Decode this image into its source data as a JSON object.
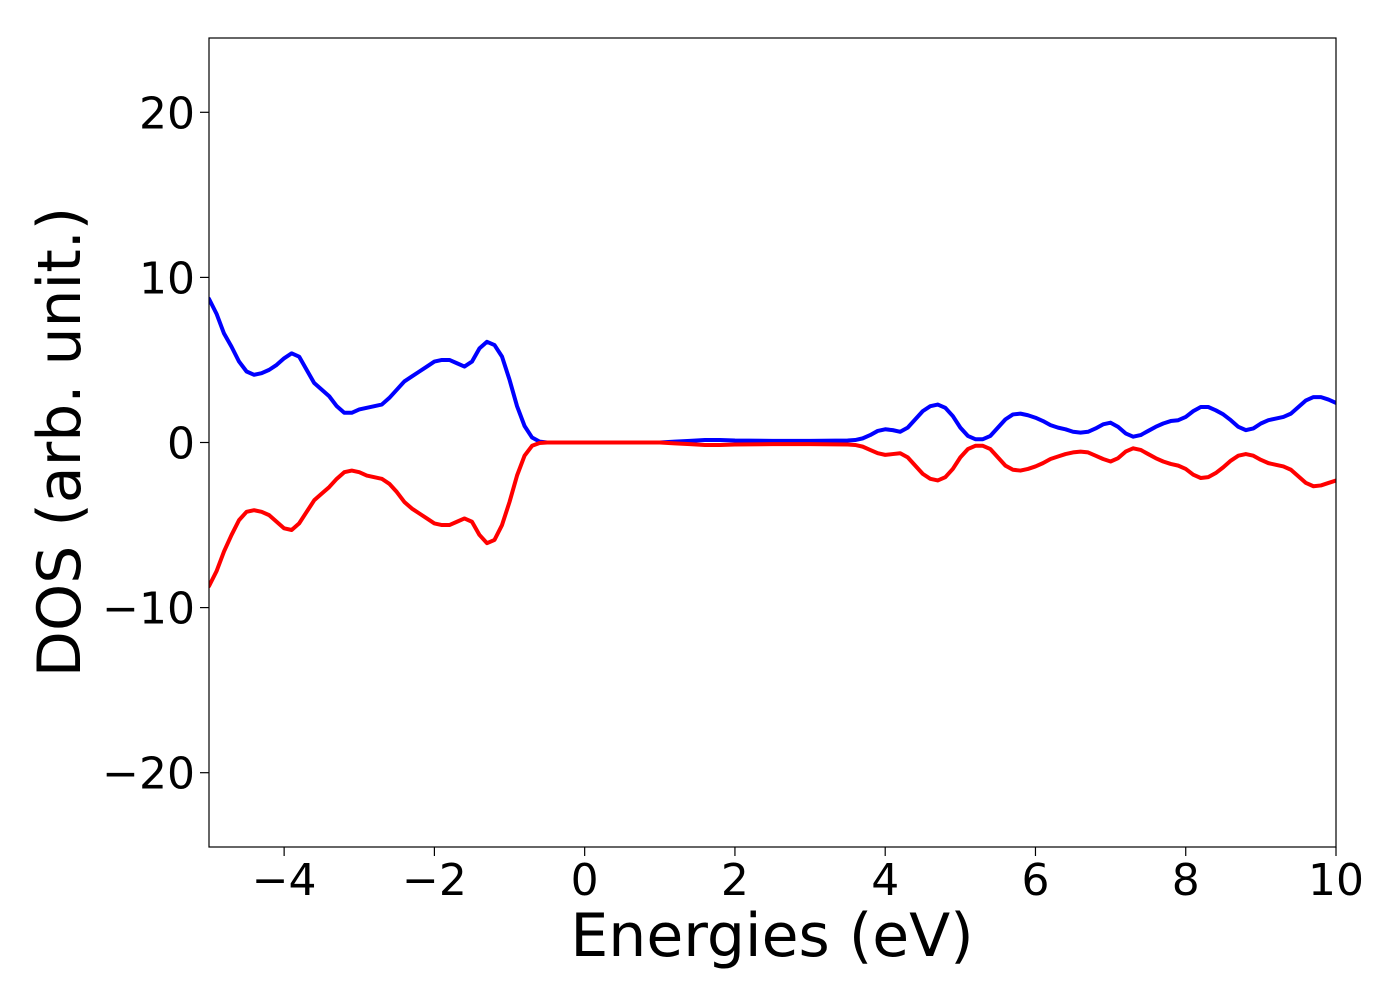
{
  "chart_data": {
    "type": "line",
    "title": "",
    "xlabel": "Energies (eV)",
    "ylabel": "DOS (arb. unit.)",
    "xlim": [
      -5,
      10
    ],
    "ylim": [
      -24.5,
      24.5
    ],
    "x_ticks": [
      -4,
      -2,
      0,
      2,
      4,
      6,
      8,
      10
    ],
    "y_ticks": [
      -20,
      -10,
      0,
      10,
      20
    ],
    "x_tick_labels": [
      "−4",
      "−2",
      "0",
      "2",
      "4",
      "6",
      "8",
      "10"
    ],
    "y_tick_labels": [
      "−20",
      "−10",
      "0",
      "10",
      "20"
    ],
    "grid": false,
    "legend": "none",
    "series": [
      {
        "color": "#0000ff",
        "x": [
          -5.0,
          -4.9,
          -4.8,
          -4.7,
          -4.6,
          -4.5,
          -4.4,
          -4.3,
          -4.2,
          -4.1,
          -4.0,
          -3.9,
          -3.8,
          -3.7,
          -3.6,
          -3.5,
          -3.4,
          -3.3,
          -3.2,
          -3.1,
          -3.0,
          -2.9,
          -2.8,
          -2.7,
          -2.6,
          -2.5,
          -2.4,
          -2.3,
          -2.2,
          -2.1,
          -2.0,
          -1.9,
          -1.8,
          -1.7,
          -1.6,
          -1.5,
          -1.4,
          -1.3,
          -1.2,
          -1.1,
          -1.0,
          -0.9,
          -0.8,
          -0.7,
          -0.6,
          -0.5,
          -0.4,
          0.0,
          0.5,
          1.0,
          1.2,
          1.4,
          1.6,
          1.8,
          2.0,
          2.5,
          3.0,
          3.5,
          3.6,
          3.7,
          3.8,
          3.9,
          4.0,
          4.1,
          4.2,
          4.3,
          4.4,
          4.5,
          4.6,
          4.7,
          4.8,
          4.9,
          5.0,
          5.1,
          5.2,
          5.3,
          5.4,
          5.5,
          5.6,
          5.7,
          5.8,
          5.9,
          6.0,
          6.1,
          6.2,
          6.3,
          6.4,
          6.5,
          6.6,
          6.7,
          6.8,
          6.9,
          7.0,
          7.1,
          7.2,
          7.3,
          7.4,
          7.5,
          7.6,
          7.7,
          7.8,
          7.9,
          8.0,
          8.1,
          8.2,
          8.3,
          8.4,
          8.5,
          8.6,
          8.7,
          8.8,
          8.9,
          9.0,
          9.1,
          9.2,
          9.3,
          9.4,
          9.5,
          9.6,
          9.7,
          9.8,
          9.9,
          10.0
        ],
        "y": [
          8.7,
          7.8,
          6.6,
          5.8,
          4.9,
          4.3,
          4.1,
          4.2,
          4.4,
          4.7,
          5.1,
          5.4,
          5.2,
          4.4,
          3.6,
          3.2,
          2.8,
          2.2,
          1.8,
          1.8,
          2.0,
          2.1,
          2.2,
          2.3,
          2.7,
          3.2,
          3.7,
          4.0,
          4.3,
          4.6,
          4.9,
          5.0,
          5.0,
          4.8,
          4.6,
          4.9,
          5.7,
          6.1,
          5.9,
          5.2,
          3.8,
          2.2,
          1.0,
          0.3,
          0.05,
          0.0,
          0.0,
          0.0,
          0.0,
          0.0,
          0.05,
          0.1,
          0.15,
          0.15,
          0.12,
          0.1,
          0.1,
          0.12,
          0.15,
          0.25,
          0.45,
          0.7,
          0.8,
          0.75,
          0.65,
          0.9,
          1.4,
          1.9,
          2.2,
          2.3,
          2.1,
          1.6,
          0.9,
          0.4,
          0.2,
          0.2,
          0.4,
          0.9,
          1.4,
          1.7,
          1.75,
          1.65,
          1.5,
          1.3,
          1.05,
          0.9,
          0.8,
          0.65,
          0.6,
          0.65,
          0.85,
          1.1,
          1.2,
          0.95,
          0.55,
          0.35,
          0.45,
          0.7,
          0.95,
          1.15,
          1.3,
          1.35,
          1.55,
          1.9,
          2.15,
          2.15,
          1.95,
          1.7,
          1.35,
          0.95,
          0.75,
          0.85,
          1.15,
          1.35,
          1.45,
          1.55,
          1.75,
          2.15,
          2.55,
          2.75,
          2.75,
          2.6,
          2.4
        ]
      },
      {
        "color": "#ff0000",
        "x": [
          -5.0,
          -4.9,
          -4.8,
          -4.7,
          -4.6,
          -4.5,
          -4.4,
          -4.3,
          -4.2,
          -4.1,
          -4.0,
          -3.9,
          -3.8,
          -3.7,
          -3.6,
          -3.5,
          -3.4,
          -3.3,
          -3.2,
          -3.1,
          -3.0,
          -2.9,
          -2.8,
          -2.7,
          -2.6,
          -2.5,
          -2.4,
          -2.3,
          -2.2,
          -2.1,
          -2.0,
          -1.9,
          -1.8,
          -1.7,
          -1.6,
          -1.5,
          -1.4,
          -1.3,
          -1.2,
          -1.1,
          -1.0,
          -0.9,
          -0.8,
          -0.7,
          -0.6,
          -0.5,
          -0.4,
          0.0,
          0.5,
          1.0,
          1.2,
          1.4,
          1.6,
          1.8,
          2.0,
          2.5,
          3.0,
          3.5,
          3.6,
          3.7,
          3.8,
          3.9,
          4.0,
          4.1,
          4.2,
          4.3,
          4.4,
          4.5,
          4.6,
          4.7,
          4.8,
          4.9,
          5.0,
          5.1,
          5.2,
          5.3,
          5.4,
          5.5,
          5.6,
          5.7,
          5.8,
          5.9,
          6.0,
          6.1,
          6.2,
          6.3,
          6.4,
          6.5,
          6.6,
          6.7,
          6.8,
          6.9,
          7.0,
          7.1,
          7.2,
          7.3,
          7.4,
          7.5,
          7.6,
          7.7,
          7.8,
          7.9,
          8.0,
          8.1,
          8.2,
          8.3,
          8.4,
          8.5,
          8.6,
          8.7,
          8.8,
          8.9,
          9.0,
          9.1,
          9.2,
          9.3,
          9.4,
          9.5,
          9.6,
          9.7,
          9.8,
          9.9,
          10.0
        ],
        "y": [
          -8.7,
          -7.8,
          -6.6,
          -5.6,
          -4.7,
          -4.2,
          -4.1,
          -4.2,
          -4.4,
          -4.8,
          -5.2,
          -5.3,
          -4.9,
          -4.2,
          -3.5,
          -3.1,
          -2.7,
          -2.2,
          -1.8,
          -1.7,
          -1.8,
          -2.0,
          -2.1,
          -2.2,
          -2.5,
          -3.0,
          -3.6,
          -4.0,
          -4.3,
          -4.6,
          -4.9,
          -5.0,
          -5.0,
          -4.8,
          -4.6,
          -4.8,
          -5.6,
          -6.1,
          -5.9,
          -5.0,
          -3.6,
          -2.0,
          -0.8,
          -0.2,
          -0.03,
          0.0,
          0.0,
          0.0,
          0.0,
          0.0,
          -0.05,
          -0.1,
          -0.15,
          -0.15,
          -0.12,
          -0.1,
          -0.1,
          -0.12,
          -0.15,
          -0.25,
          -0.45,
          -0.65,
          -0.75,
          -0.7,
          -0.65,
          -0.9,
          -1.4,
          -1.9,
          -2.2,
          -2.3,
          -2.1,
          -1.6,
          -0.9,
          -0.4,
          -0.2,
          -0.2,
          -0.4,
          -0.9,
          -1.4,
          -1.65,
          -1.7,
          -1.6,
          -1.45,
          -1.25,
          -1.0,
          -0.85,
          -0.7,
          -0.6,
          -0.55,
          -0.6,
          -0.8,
          -1.0,
          -1.15,
          -0.95,
          -0.55,
          -0.35,
          -0.45,
          -0.7,
          -0.95,
          -1.15,
          -1.3,
          -1.4,
          -1.6,
          -1.95,
          -2.15,
          -2.1,
          -1.85,
          -1.5,
          -1.1,
          -0.8,
          -0.7,
          -0.8,
          -1.05,
          -1.25,
          -1.35,
          -1.45,
          -1.65,
          -2.05,
          -2.45,
          -2.65,
          -2.6,
          -2.45,
          -2.3
        ]
      }
    ]
  }
}
